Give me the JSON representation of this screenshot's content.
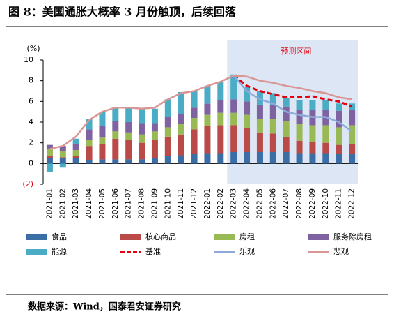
{
  "chart_data": {
    "type": "bar",
    "title": "图 8：美国通胀大概率 3 月份触顶，后续回落",
    "source": "数据来源：Wind，国泰君安证券研究",
    "y_unit": "(%)",
    "annotation": "预测区间",
    "categories": [
      "2021-01",
      "2021-02",
      "2021-03",
      "2021-04",
      "2021-05",
      "2021-06",
      "2021-07",
      "2021-08",
      "2021-09",
      "2021-10",
      "2021-11",
      "2021-12",
      "2022-01",
      "2022-02",
      "2022-03",
      "2022-04",
      "2022-05",
      "2022-06",
      "2022-07",
      "2022-08",
      "2022-09",
      "2022-10",
      "2022-11",
      "2022-12"
    ],
    "ylim": [
      -2,
      10
    ],
    "yticks": [
      {
        "value": -2,
        "label": "(2)"
      },
      0,
      2,
      4,
      6,
      8,
      10
    ],
    "series": [
      {
        "name": "食品",
        "kind": "bar",
        "color": "#3a6ea5",
        "values": [
          0.5,
          0.5,
          0.5,
          0.3,
          0.4,
          0.4,
          0.4,
          0.4,
          0.5,
          0.7,
          0.8,
          0.9,
          1.0,
          1.0,
          1.1,
          1.1,
          1.1,
          1.1,
          1.1,
          1.0,
          1.0,
          1.0,
          0.9,
          0.9
        ]
      },
      {
        "name": "核心商品",
        "kind": "bar",
        "color": "#b94a48",
        "values": [
          0.2,
          0.1,
          0.2,
          1.4,
          1.5,
          2.0,
          1.9,
          1.6,
          1.8,
          1.9,
          2.0,
          2.4,
          2.6,
          2.7,
          2.6,
          2.3,
          1.9,
          1.8,
          1.5,
          1.2,
          1.1,
          1.0,
          0.9,
          1.0
        ]
      },
      {
        "name": "房租",
        "kind": "bar",
        "color": "#98b954",
        "values": [
          0.7,
          0.6,
          0.6,
          0.6,
          0.6,
          0.7,
          0.7,
          0.8,
          0.8,
          0.9,
          1.0,
          1.1,
          1.1,
          1.2,
          1.2,
          1.3,
          1.3,
          1.4,
          1.5,
          1.6,
          1.6,
          1.7,
          1.7,
          1.8
        ]
      },
      {
        "name": "服务除房租",
        "kind": "bar",
        "color": "#7f63a1",
        "values": [
          0.4,
          0.5,
          0.6,
          1.0,
          1.1,
          1.0,
          1.0,
          1.1,
          0.8,
          1.0,
          1.0,
          1.0,
          1.1,
          1.2,
          1.3,
          1.3,
          1.4,
          1.4,
          1.4,
          1.4,
          1.5,
          1.5,
          1.6,
          1.5
        ]
      },
      {
        "name": "能源",
        "kind": "bar",
        "color": "#4bacc6",
        "values": [
          -0.8,
          -0.4,
          0.5,
          1.0,
          1.4,
          1.3,
          1.4,
          1.4,
          1.4,
          1.7,
          2.1,
          1.6,
          1.7,
          1.8,
          2.4,
          1.4,
          1.3,
          1.1,
          0.8,
          0.9,
          0.9,
          0.9,
          0.7,
          0.6
        ]
      },
      {
        "name": "基准",
        "kind": "line",
        "dashed": true,
        "color": "#e0000f",
        "values": [
          null,
          null,
          null,
          null,
          null,
          null,
          null,
          null,
          null,
          null,
          null,
          null,
          null,
          null,
          8.5,
          7.5,
          7.0,
          6.7,
          6.4,
          6.4,
          6.5,
          6.2,
          6.0,
          5.5
        ]
      },
      {
        "name": "乐观",
        "kind": "line",
        "dashed": false,
        "color": "#8eaadb",
        "values": [
          null,
          null,
          null,
          null,
          null,
          null,
          null,
          null,
          null,
          null,
          null,
          null,
          null,
          null,
          8.5,
          7.0,
          6.2,
          5.8,
          5.0,
          4.7,
          4.5,
          4.5,
          4.0,
          3.1
        ]
      },
      {
        "name": "悲观",
        "kind": "line",
        "dashed": false,
        "color": "#d99694",
        "values": [
          1.4,
          1.7,
          2.6,
          4.2,
          5.0,
          5.4,
          5.4,
          5.3,
          5.4,
          6.2,
          6.8,
          7.0,
          7.5,
          7.9,
          8.5,
          8.4,
          8.0,
          7.8,
          7.5,
          7.3,
          7.0,
          6.8,
          6.4,
          6.2
        ]
      }
    ]
  }
}
